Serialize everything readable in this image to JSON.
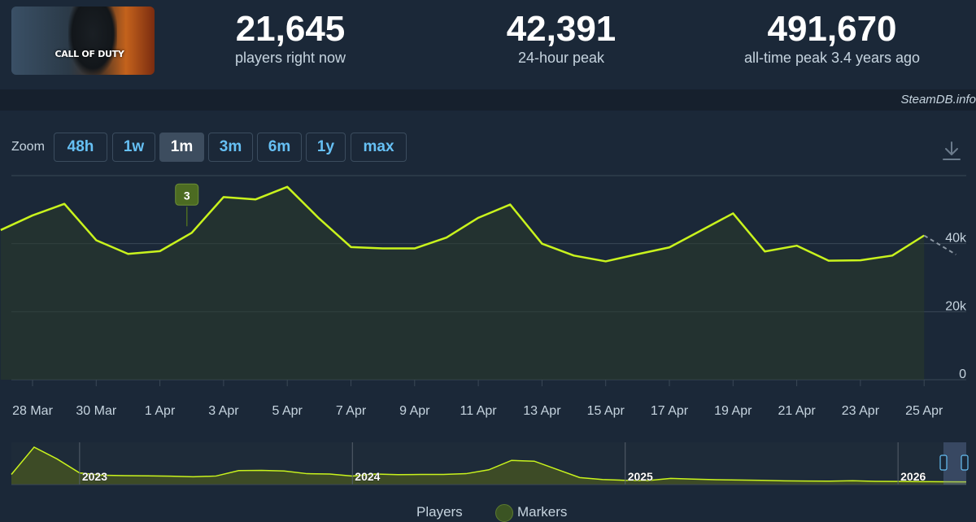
{
  "header": {
    "game_logo_text": "CALL OF DUTY",
    "stats": [
      {
        "value": "21,645",
        "label": "players right now"
      },
      {
        "value": "42,391",
        "label": "24-hour peak"
      },
      {
        "value": "491,670",
        "label": "all-time peak 3.4 years ago"
      }
    ]
  },
  "credit": "SteamDB.info",
  "zoom": {
    "label": "Zoom",
    "options": [
      "48h",
      "1w",
      "1m",
      "3m",
      "6m",
      "1y",
      "max"
    ],
    "active": "1m"
  },
  "icons": {
    "download": "download-icon"
  },
  "colors": {
    "background": "#1b2838",
    "line": "#c9f31d",
    "grid": "#3a4756",
    "axis_text": "#c6d4df",
    "marker": "#4c6b22",
    "zoom_active_bg": "#3d4d5f",
    "zoom_text": "#66c0f4"
  },
  "chart_data": [
    {
      "type": "line",
      "x": [
        "27 Mar",
        "28 Mar",
        "29 Mar",
        "30 Mar",
        "31 Mar",
        "1 Apr",
        "2 Apr",
        "3 Apr",
        "4 Apr",
        "5 Apr",
        "6 Apr",
        "7 Apr",
        "8 Apr",
        "9 Apr",
        "10 Apr",
        "11 Apr",
        "12 Apr",
        "13 Apr",
        "14 Apr",
        "15 Apr",
        "16 Apr",
        "17 Apr",
        "18 Apr",
        "19 Apr",
        "20 Apr",
        "21 Apr",
        "22 Apr",
        "23 Apr",
        "24 Apr",
        "25 Apr",
        "26 Apr"
      ],
      "series": [
        {
          "name": "Players",
          "values": [
            44000,
            48300,
            51700,
            41000,
            37000,
            37800,
            43200,
            53700,
            53000,
            56700,
            47400,
            39000,
            38600,
            38600,
            41800,
            47600,
            51500,
            40000,
            36500,
            34800,
            36900,
            38900,
            43900,
            48900,
            37700,
            39400,
            35000,
            35100,
            36500,
            42400,
            36800
          ]
        }
      ],
      "projected_last_point": true,
      "x_tick_labels": [
        "28 Mar",
        "30 Mar",
        "1 Apr",
        "3 Apr",
        "5 Apr",
        "7 Apr",
        "9 Apr",
        "11 Apr",
        "13 Apr",
        "15 Apr",
        "17 Apr",
        "19 Apr",
        "21 Apr",
        "23 Apr",
        "25 Apr"
      ],
      "y_tick_labels": [
        "0",
        "20k",
        "40k"
      ],
      "ylim": [
        0,
        60000
      ],
      "grid": true,
      "markers": [
        {
          "x": "2 Apr",
          "label": "3"
        }
      ],
      "legend": [
        {
          "name": "Players"
        },
        {
          "name": "Markers"
        }
      ]
    },
    {
      "type": "area",
      "x": [
        "2022-10",
        "2022-11",
        "2022-12",
        "2023-01",
        "2023-02",
        "2023-03",
        "2023-04",
        "2023-05",
        "2023-06",
        "2023-07",
        "2023-08",
        "2023-09",
        "2023-10",
        "2023-11",
        "2023-12",
        "2024-01",
        "2024-02",
        "2024-03",
        "2024-04",
        "2024-05",
        "2024-06",
        "2024-07",
        "2024-08",
        "2024-09",
        "2024-10",
        "2024-11",
        "2024-12",
        "2025-01",
        "2025-02",
        "2025-03",
        "2025-04",
        "2025-05",
        "2025-06",
        "2025-07",
        "2025-08",
        "2025-09",
        "2025-10",
        "2025-11",
        "2025-12",
        "2026-01",
        "2026-02",
        "2026-03",
        "2026-04"
      ],
      "series": [
        {
          "name": "Players",
          "values": [
            130000,
            480000,
            330000,
            150000,
            120000,
            115000,
            112000,
            108000,
            100000,
            110000,
            180000,
            182000,
            175000,
            140000,
            135000,
            110000,
            135000,
            128000,
            130000,
            130000,
            140000,
            190000,
            310000,
            300000,
            195000,
            90000,
            65000,
            55000,
            52000,
            80000,
            70000,
            62000,
            58000,
            55000,
            48000,
            45000,
            44000,
            50000,
            42000,
            40000,
            38000,
            36000,
            35000
          ]
        }
      ],
      "x_tick_labels": [
        "2023",
        "2024",
        "2025",
        "2026"
      ]
    }
  ]
}
